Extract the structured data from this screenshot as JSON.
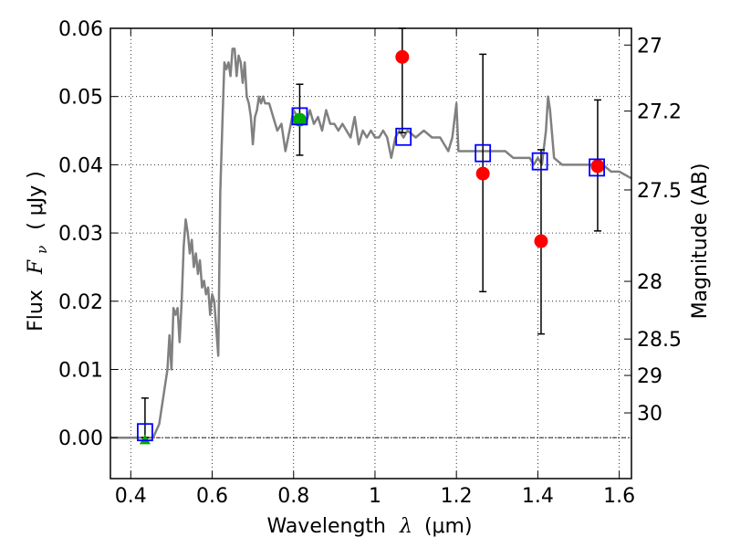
{
  "chart_data": {
    "type": "scatter",
    "xlabel_prefix": "Wavelength",
    "xlabel_symbol": "λ",
    "xlabel_unit": "(μm)",
    "ylabel_prefix": "Flux",
    "ylabel_symbol": "F",
    "ylabel_sub": "ν",
    "ylabel_unit": "( μJy )",
    "y2label": "Magnitude (AB)",
    "xlim": [
      0.35,
      1.63
    ],
    "ylim": [
      -0.006,
      0.06
    ],
    "xticks": [
      "0.4",
      "0.6",
      "0.8",
      "1",
      "1.2",
      "1.4",
      "1.6"
    ],
    "xtick_values": [
      0.4,
      0.6,
      0.8,
      1.0,
      1.2,
      1.4,
      1.6
    ],
    "yticks": [
      "0.00",
      "0.01",
      "0.02",
      "0.03",
      "0.04",
      "0.05",
      "0.06"
    ],
    "ytick_values": [
      0.0,
      0.01,
      0.02,
      0.03,
      0.04,
      0.05,
      0.06
    ],
    "y2ticks": [
      "27",
      "27.2",
      "27.5",
      "28",
      "28.5",
      "29",
      "30"
    ],
    "y2tick_values": [
      27,
      27.2,
      27.5,
      28,
      28.5,
      29,
      30
    ],
    "grid": true,
    "colors": {
      "model": "#808080",
      "red": "#ff0000",
      "green": "#00aa00",
      "blue": "#0000ff",
      "errorbar": "#000000"
    },
    "model_spectrum": [
      [
        0.35,
        0.0
      ],
      [
        0.44,
        0.0
      ],
      [
        0.455,
        0.0
      ],
      [
        0.47,
        0.002
      ],
      [
        0.48,
        0.006
      ],
      [
        0.49,
        0.01
      ],
      [
        0.495,
        0.015
      ],
      [
        0.5,
        0.01
      ],
      [
        0.505,
        0.019
      ],
      [
        0.51,
        0.018
      ],
      [
        0.515,
        0.019
      ],
      [
        0.52,
        0.014
      ],
      [
        0.525,
        0.02
      ],
      [
        0.53,
        0.028
      ],
      [
        0.535,
        0.032
      ],
      [
        0.54,
        0.03
      ],
      [
        0.545,
        0.027
      ],
      [
        0.55,
        0.029
      ],
      [
        0.555,
        0.025
      ],
      [
        0.56,
        0.027
      ],
      [
        0.565,
        0.024
      ],
      [
        0.57,
        0.026
      ],
      [
        0.575,
        0.022
      ],
      [
        0.58,
        0.023
      ],
      [
        0.585,
        0.021
      ],
      [
        0.59,
        0.022
      ],
      [
        0.595,
        0.018
      ],
      [
        0.6,
        0.021
      ],
      [
        0.605,
        0.02
      ],
      [
        0.61,
        0.016
      ],
      [
        0.615,
        0.012
      ],
      [
        0.62,
        0.036
      ],
      [
        0.625,
        0.046
      ],
      [
        0.63,
        0.055
      ],
      [
        0.635,
        0.054
      ],
      [
        0.64,
        0.055
      ],
      [
        0.645,
        0.053
      ],
      [
        0.65,
        0.057
      ],
      [
        0.655,
        0.057
      ],
      [
        0.66,
        0.053
      ],
      [
        0.665,
        0.056
      ],
      [
        0.67,
        0.055
      ],
      [
        0.675,
        0.052
      ],
      [
        0.68,
        0.055
      ],
      [
        0.685,
        0.05
      ],
      [
        0.69,
        0.049
      ],
      [
        0.695,
        0.047
      ],
      [
        0.7,
        0.043
      ],
      [
        0.705,
        0.047
      ],
      [
        0.71,
        0.048
      ],
      [
        0.715,
        0.05
      ],
      [
        0.72,
        0.049
      ],
      [
        0.725,
        0.05
      ],
      [
        0.73,
        0.049
      ],
      [
        0.74,
        0.049
      ],
      [
        0.75,
        0.047
      ],
      [
        0.76,
        0.045
      ],
      [
        0.77,
        0.046
      ],
      [
        0.775,
        0.044
      ],
      [
        0.78,
        0.042
      ],
      [
        0.79,
        0.045
      ],
      [
        0.8,
        0.048
      ],
      [
        0.81,
        0.047
      ],
      [
        0.82,
        0.047
      ],
      [
        0.83,
        0.046
      ],
      [
        0.84,
        0.048
      ],
      [
        0.85,
        0.046
      ],
      [
        0.86,
        0.047
      ],
      [
        0.87,
        0.045
      ],
      [
        0.88,
        0.048
      ],
      [
        0.89,
        0.046
      ],
      [
        0.9,
        0.046
      ],
      [
        0.91,
        0.045
      ],
      [
        0.92,
        0.046
      ],
      [
        0.93,
        0.045
      ],
      [
        0.94,
        0.044
      ],
      [
        0.95,
        0.047
      ],
      [
        0.96,
        0.043
      ],
      [
        0.97,
        0.045
      ],
      [
        0.98,
        0.044
      ],
      [
        0.99,
        0.045
      ],
      [
        1.0,
        0.044
      ],
      [
        1.01,
        0.044
      ],
      [
        1.02,
        0.045
      ],
      [
        1.03,
        0.044
      ],
      [
        1.04,
        0.041
      ],
      [
        1.05,
        0.044
      ],
      [
        1.06,
        0.045
      ],
      [
        1.07,
        0.044
      ],
      [
        1.08,
        0.045
      ],
      [
        1.1,
        0.044
      ],
      [
        1.12,
        0.045
      ],
      [
        1.14,
        0.044
      ],
      [
        1.16,
        0.044
      ],
      [
        1.17,
        0.043
      ],
      [
        1.18,
        0.042
      ],
      [
        1.19,
        0.044
      ],
      [
        1.2,
        0.049
      ],
      [
        1.205,
        0.042
      ],
      [
        1.22,
        0.042
      ],
      [
        1.24,
        0.042
      ],
      [
        1.26,
        0.042
      ],
      [
        1.28,
        0.042
      ],
      [
        1.3,
        0.042
      ],
      [
        1.32,
        0.042
      ],
      [
        1.34,
        0.041
      ],
      [
        1.36,
        0.041
      ],
      [
        1.38,
        0.041
      ],
      [
        1.39,
        0.04
      ],
      [
        1.4,
        0.041
      ],
      [
        1.41,
        0.04
      ],
      [
        1.42,
        0.045
      ],
      [
        1.425,
        0.05
      ],
      [
        1.43,
        0.048
      ],
      [
        1.44,
        0.041
      ],
      [
        1.46,
        0.04
      ],
      [
        1.48,
        0.04
      ],
      [
        1.5,
        0.04
      ],
      [
        1.52,
        0.04
      ],
      [
        1.54,
        0.04
      ],
      [
        1.56,
        0.04
      ],
      [
        1.58,
        0.039
      ],
      [
        1.6,
        0.039
      ],
      [
        1.63,
        0.038
      ]
    ],
    "red_points": [
      {
        "x": 1.067,
        "y": 0.0558
      },
      {
        "x": 1.265,
        "y": 0.0387
      },
      {
        "x": 1.408,
        "y": 0.0288
      },
      {
        "x": 1.547,
        "y": 0.0398
      }
    ],
    "green_circle_points": [
      {
        "x": 0.815,
        "y": 0.0466
      }
    ],
    "green_triangle_points": [
      {
        "x": 0.435,
        "y": -0.0003
      }
    ],
    "blue_squares": [
      {
        "x": 0.435,
        "y": 0.0008
      },
      {
        "x": 0.815,
        "y": 0.0471
      },
      {
        "x": 1.07,
        "y": 0.0441
      },
      {
        "x": 1.265,
        "y": 0.0417
      },
      {
        "x": 1.405,
        "y": 0.0405
      },
      {
        "x": 1.545,
        "y": 0.0396
      }
    ],
    "error_bars": [
      {
        "x": 0.435,
        "low": 0.0,
        "high": 0.0058
      },
      {
        "x": 0.815,
        "low": 0.0414,
        "high": 0.0518
      },
      {
        "x": 1.067,
        "low": 0.0447,
        "high": 0.06
      },
      {
        "x": 1.265,
        "low": 0.0214,
        "high": 0.0562
      },
      {
        "x": 1.408,
        "low": 0.0152,
        "high": 0.0422
      },
      {
        "x": 1.547,
        "low": 0.0303,
        "high": 0.0495
      }
    ]
  }
}
